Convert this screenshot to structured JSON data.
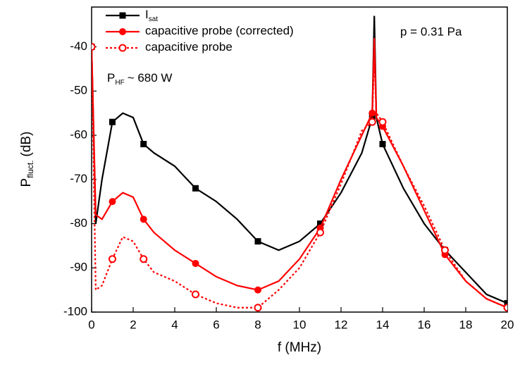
{
  "chart_data": {
    "type": "line",
    "xlabel": "f (MHz)",
    "ylabel": "P",
    "ylabel_sub": "fluct.",
    "ylabel_unit": "(dB)",
    "annotations": {
      "power": "P",
      "power_sub": "HF",
      "power_rest": "~ 680 W",
      "pressure": "p = 0.31 Pa"
    },
    "x": [
      0,
      0.2,
      0.5,
      1,
      1.5,
      2,
      2.5,
      3,
      4,
      5,
      6,
      7,
      8,
      9,
      10,
      11,
      12,
      13,
      13.5,
      13.6,
      13.7,
      14,
      15,
      16,
      17,
      18,
      19,
      20
    ],
    "series": [
      {
        "name": "I",
        "name_sub": "sat",
        "color": "#000000",
        "marker": "square",
        "linestyle": "solid",
        "values": [
          -40,
          -80,
          -70,
          -57,
          -55,
          -56,
          -62,
          -64,
          -67,
          -72,
          -75,
          -79,
          -84,
          -86,
          -84,
          -80,
          -73,
          -64,
          -56,
          -33,
          -56,
          -62,
          -72,
          -80,
          -86,
          -91,
          -96,
          -98
        ]
      },
      {
        "name": "capacitive probe (corrected)",
        "color": "#ff0000",
        "marker": "circle",
        "linestyle": "solid",
        "values": [
          -40,
          -78,
          -79,
          -75,
          -73,
          -74,
          -79,
          -82,
          -86,
          -89,
          -92,
          -94,
          -95,
          -93,
          -88,
          -81,
          -70,
          -60,
          -55,
          -38,
          -56,
          -58,
          -67,
          -77,
          -87,
          -93,
          -97,
          -99
        ]
      },
      {
        "name": "capacitive probe",
        "color": "#ff0000",
        "marker": "open-circle",
        "linestyle": "dotted",
        "values": [
          -40,
          -95,
          -94,
          -88,
          -83,
          -84,
          -88,
          -91,
          -93,
          -96,
          -98,
          -99,
          -99,
          -95,
          -90,
          -82,
          -71,
          -59,
          -57,
          -41,
          -55,
          -57,
          -67,
          -76,
          -86,
          -93,
          -97,
          -99
        ]
      }
    ],
    "xlim": [
      0,
      20
    ],
    "xticks": [
      0,
      2,
      4,
      6,
      8,
      10,
      12,
      14,
      16,
      18,
      20
    ],
    "ylim": [
      -100,
      -31
    ],
    "yticks": [
      -100,
      -90,
      -80,
      -70,
      -60,
      -50,
      -40
    ]
  }
}
